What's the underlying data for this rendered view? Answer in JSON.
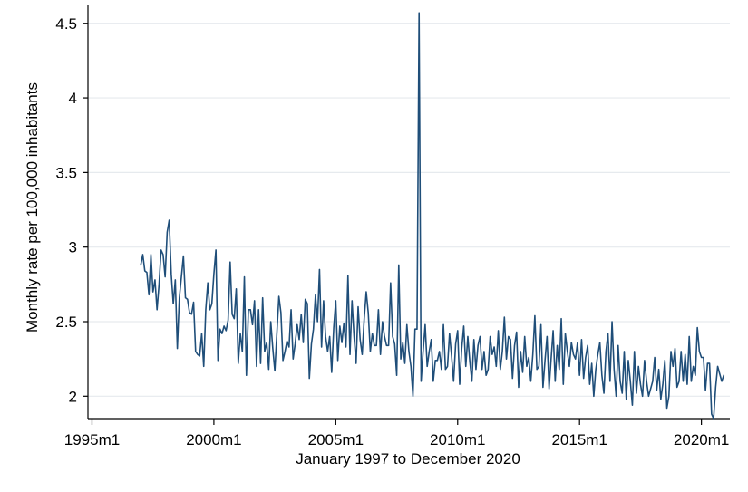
{
  "chart_data": {
    "type": "line",
    "title": "",
    "xlabel": "January 1997 to December 2020",
    "ylabel": "Monthly rate per 100,000 inhabitants",
    "xlim": [
      "1994m11",
      "2021m3"
    ],
    "ylim": [
      1.85,
      4.62
    ],
    "x_ticks": [
      "1995m1",
      "2000m1",
      "2005m1",
      "2010m1",
      "2015m1",
      "2020m1"
    ],
    "y_ticks": [
      2,
      2.5,
      3,
      3.5,
      4,
      4.5
    ],
    "y_tick_labels": [
      "2",
      "2.5",
      "3",
      "3.5",
      "4",
      "4.5"
    ],
    "grid": {
      "horizontal": true,
      "vertical": false
    },
    "legend": "none",
    "colors": {
      "line": "#1f4e79",
      "grid": "#e6eaee",
      "axis": "#000000",
      "background": "#ffffff"
    },
    "x_start": "1997m1",
    "x_end": "2020m12",
    "x_frequency": "monthly",
    "series": [
      {
        "values": [
          2.88,
          2.95,
          2.84,
          2.83,
          2.68,
          2.95,
          2.7,
          2.78,
          2.58,
          2.75,
          2.98,
          2.95,
          2.8,
          3.1,
          3.18,
          2.82,
          2.62,
          2.78,
          2.32,
          2.66,
          2.8,
          2.94,
          2.66,
          2.65,
          2.56,
          2.55,
          2.63,
          2.3,
          2.28,
          2.27,
          2.42,
          2.2,
          2.58,
          2.76,
          2.58,
          2.62,
          2.82,
          2.98,
          2.24,
          2.45,
          2.42,
          2.47,
          2.44,
          2.51,
          2.9,
          2.55,
          2.52,
          2.72,
          2.22,
          2.42,
          2.3,
          2.8,
          2.14,
          2.58,
          2.58,
          2.48,
          2.64,
          2.2,
          2.58,
          2.22,
          2.66,
          2.3,
          2.36,
          2.18,
          2.5,
          2.32,
          2.17,
          2.42,
          2.67,
          2.56,
          2.24,
          2.3,
          2.37,
          2.33,
          2.58,
          2.25,
          2.35,
          2.48,
          2.38,
          2.55,
          2.36,
          2.65,
          2.62,
          2.12,
          2.35,
          2.45,
          2.68,
          2.5,
          2.85,
          2.33,
          2.64,
          2.4,
          2.3,
          2.4,
          2.16,
          2.46,
          2.64,
          2.24,
          2.47,
          2.36,
          2.49,
          2.33,
          2.81,
          2.28,
          2.64,
          2.4,
          2.22,
          2.6,
          2.38,
          2.28,
          2.52,
          2.7,
          2.56,
          2.3,
          2.42,
          2.34,
          2.34,
          2.58,
          2.28,
          2.5,
          2.4,
          2.34,
          2.34,
          2.76,
          2.4,
          2.35,
          2.14,
          2.88,
          2.25,
          2.36,
          2.22,
          2.48,
          2.3,
          2.2,
          2.0,
          2.45,
          2.45,
          4.57,
          2.1,
          2.3,
          2.48,
          2.2,
          2.3,
          2.38,
          2.1,
          2.24,
          2.24,
          2.3,
          2.18,
          2.48,
          2.18,
          2.2,
          2.42,
          2.27,
          2.1,
          2.35,
          2.44,
          2.08,
          2.32,
          2.47,
          2.2,
          2.4,
          2.23,
          2.1,
          2.38,
          2.18,
          2.34,
          2.4,
          2.18,
          2.3,
          2.14,
          2.18,
          2.4,
          2.28,
          2.33,
          2.2,
          2.44,
          2.18,
          2.3,
          2.53,
          2.25,
          2.4,
          2.38,
          2.12,
          2.34,
          2.43,
          2.06,
          2.3,
          2.16,
          2.4,
          2.2,
          2.26,
          2.1,
          2.28,
          2.54,
          2.18,
          2.2,
          2.48,
          2.06,
          2.24,
          2.4,
          2.05,
          2.25,
          2.44,
          2.1,
          2.34,
          2.18,
          2.52,
          2.08,
          2.42,
          2.3,
          2.2,
          2.36,
          2.28,
          2.25,
          2.36,
          2.14,
          2.38,
          2.12,
          2.26,
          2.34,
          2.08,
          2.22,
          2.0,
          2.18,
          2.28,
          2.36,
          2.14,
          2.02,
          2.3,
          2.42,
          2.1,
          2.5,
          2.18,
          2.0,
          2.34,
          2.1,
          2.02,
          2.3,
          1.98,
          2.24,
          2.1,
          1.94,
          2.3,
          2.02,
          2.2,
          2.08,
          2.0,
          2.24,
          2.1,
          2.0,
          2.05,
          2.1,
          2.26,
          2.04,
          2.18,
          1.98,
          2.08,
          2.24,
          1.92,
          2.0,
          2.3,
          2.2,
          2.32,
          2.06,
          2.1,
          2.3,
          2.1,
          2.28,
          2.08,
          2.4,
          2.1,
          2.2,
          2.14,
          2.46,
          2.3,
          2.26,
          2.26,
          2.04,
          2.22,
          2.22,
          1.88,
          1.85,
          2.06,
          2.2,
          2.15,
          2.1,
          2.14
        ]
      }
    ]
  }
}
